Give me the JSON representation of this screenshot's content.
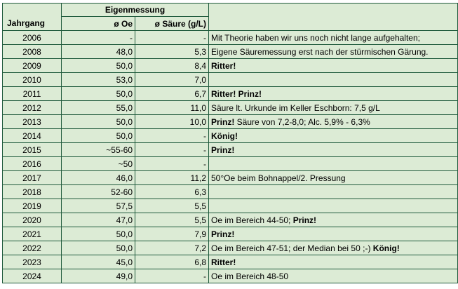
{
  "header": {
    "group_label": "Eigenmessung",
    "col_year": "Jahrgang",
    "col_oe": "ø Oe",
    "col_acid": "ø Säure (g/L)"
  },
  "rows": [
    {
      "year": "2006",
      "oe": "-",
      "acid": "-",
      "note_plain_before": "Mit Theorie haben wir uns noch nicht lange aufgehalten;",
      "note_bold": "",
      "note_plain_after": ""
    },
    {
      "year": "2008",
      "oe": "48,0",
      "acid": "5,3",
      "note_plain_before": "Eigene Säuremessung erst nach der stürmischen Gärung.",
      "note_bold": "",
      "note_plain_after": ""
    },
    {
      "year": "2009",
      "oe": "50,0",
      "acid": "8,4",
      "note_plain_before": "",
      "note_bold": "Ritter!",
      "note_plain_after": ""
    },
    {
      "year": "2010",
      "oe": "53,0",
      "acid": "7,0",
      "note_plain_before": "",
      "note_bold": "",
      "note_plain_after": ""
    },
    {
      "year": "2011",
      "oe": "50,0",
      "acid": "6,7",
      "note_plain_before": "",
      "note_bold": "Ritter! Prinz!",
      "note_plain_after": ""
    },
    {
      "year": "2012",
      "oe": "55,0",
      "acid": "11,0",
      "note_plain_before": "Säure lt. Urkunde im Keller Eschborn: 7,5 g/L",
      "note_bold": "",
      "note_plain_after": ""
    },
    {
      "year": "2013",
      "oe": "50,0",
      "acid": "10,0",
      "note_plain_before": "",
      "note_bold": "Prinz!",
      "note_plain_after": " Säure von 7,2-8,0; Alc. 5,9% - 6,3%"
    },
    {
      "year": "2014",
      "oe": "50,0",
      "acid": "-",
      "note_plain_before": "",
      "note_bold": "König!",
      "note_plain_after": ""
    },
    {
      "year": "2015",
      "oe": "~55-60",
      "acid": "-",
      "note_plain_before": "",
      "note_bold": "Prinz!",
      "note_plain_after": ""
    },
    {
      "year": "2016",
      "oe": "~50",
      "acid": "-",
      "note_plain_before": "",
      "note_bold": "",
      "note_plain_after": ""
    },
    {
      "year": "2017",
      "oe": "46,0",
      "acid": "11,2",
      "note_plain_before": "50°Oe beim Bohnappel/2. Pressung",
      "note_bold": "",
      "note_plain_after": ""
    },
    {
      "year": "2018",
      "oe": "52-60",
      "acid": "6,3",
      "note_plain_before": "",
      "note_bold": "",
      "note_plain_after": ""
    },
    {
      "year": "2019",
      "oe": "57,5",
      "acid": "5,5",
      "note_plain_before": "",
      "note_bold": "",
      "note_plain_after": ""
    },
    {
      "year": "2020",
      "oe": "47,0",
      "acid": "5,5",
      "note_plain_before": "Oe im Bereich 44-50; ",
      "note_bold": "Prinz!",
      "note_plain_after": ""
    },
    {
      "year": "2021",
      "oe": "50,0",
      "acid": "7,9",
      "note_plain_before": "",
      "note_bold": "Prinz!",
      "note_plain_after": ""
    },
    {
      "year": "2022",
      "oe": "50,0",
      "acid": "7,2",
      "note_plain_before": "Oe im Bereich 47-51; der Median bei 50 ;-) ",
      "note_bold": "König!",
      "note_plain_after": ""
    },
    {
      "year": "2023",
      "oe": "45,0",
      "acid": "6,8",
      "note_plain_before": "",
      "note_bold": "Ritter!",
      "note_plain_after": ""
    },
    {
      "year": "2024",
      "oe": "49,0",
      "acid": "-",
      "note_plain_before": "Oe im Bereich 48-50",
      "note_bold": "",
      "note_plain_after": ""
    }
  ]
}
